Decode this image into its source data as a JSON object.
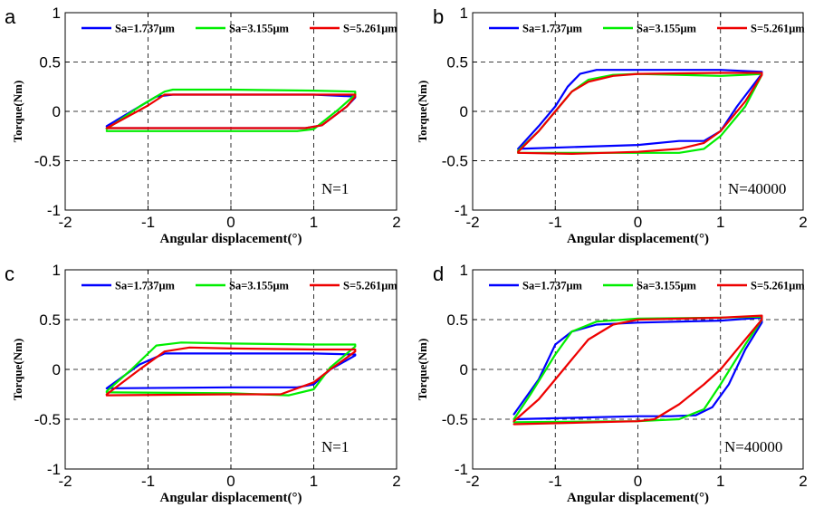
{
  "chart_data": [
    {
      "panel": "a",
      "type": "line",
      "xlabel": "Angular displacement(°)",
      "ylabel": "Torque(Nm)",
      "xlim": [
        -2,
        2
      ],
      "ylim": [
        -1,
        1
      ],
      "xticks": [
        "-2",
        "-1",
        "0",
        "1",
        "2"
      ],
      "yticks": [
        "1",
        "0.5",
        "0",
        "-0.5",
        "-1"
      ],
      "grid": true,
      "legend_position": "top",
      "annotation": "N=1",
      "series": [
        {
          "name": "Sa=1.737μm",
          "color": "#0000ff",
          "x": [
            -1.5,
            -1.2,
            -0.9,
            -0.7,
            0,
            1.0,
            1.5,
            1.5,
            1.4,
            1.1,
            0.9,
            0,
            -1.5
          ],
          "y": [
            -0.15,
            0.0,
            0.15,
            0.17,
            0.17,
            0.17,
            0.15,
            0.14,
            0.05,
            -0.14,
            -0.17,
            -0.17,
            -0.17
          ]
        },
        {
          "name": "Sa=3.155μm",
          "color": "#00ee00",
          "x": [
            -1.5,
            -1.1,
            -0.8,
            -0.7,
            0,
            1.0,
            1.5,
            1.5,
            1.3,
            1.0,
            0.8,
            0,
            -1.5
          ],
          "y": [
            -0.18,
            0.05,
            0.2,
            0.22,
            0.22,
            0.21,
            0.2,
            0.17,
            0.02,
            -0.18,
            -0.2,
            -0.2,
            -0.2
          ]
        },
        {
          "name": "S=5.261μm",
          "color": "#ee0000",
          "x": [
            -1.5,
            -1.0,
            -0.8,
            0,
            1.0,
            1.5,
            1.5,
            1.4,
            1.1,
            0.9,
            0,
            -1.5
          ],
          "y": [
            -0.17,
            0.06,
            0.17,
            0.17,
            0.17,
            0.17,
            0.15,
            0.05,
            -0.14,
            -0.17,
            -0.17,
            -0.17
          ]
        }
      ]
    },
    {
      "panel": "b",
      "type": "line",
      "xlabel": "Angular displacement(°)",
      "ylabel": "Torque(Nm)",
      "xlim": [
        -2,
        2
      ],
      "ylim": [
        -1,
        1
      ],
      "xticks": [
        "-2",
        "-1",
        "0",
        "1",
        "2"
      ],
      "yticks": [
        "1",
        "0.5",
        "0",
        "-0.5",
        "-1"
      ],
      "grid": true,
      "legend_position": "top",
      "annotation": "N=40000",
      "series": [
        {
          "name": "Sa=1.737μm",
          "color": "#0000ff",
          "x": [
            -1.45,
            -1.2,
            -1.0,
            -0.85,
            -0.7,
            -0.5,
            0,
            1.0,
            1.5,
            1.5,
            1.2,
            1.0,
            0.8,
            0.5,
            0,
            -1.45
          ],
          "y": [
            -0.38,
            -0.15,
            0.05,
            0.25,
            0.38,
            0.42,
            0.42,
            0.42,
            0.4,
            0.38,
            0.05,
            -0.2,
            -0.3,
            -0.3,
            -0.34,
            -0.38
          ]
        },
        {
          "name": "Sa=3.155μm",
          "color": "#00ee00",
          "x": [
            -1.45,
            -1.2,
            -1.0,
            -0.8,
            -0.6,
            -0.3,
            0,
            1.0,
            1.3,
            1.5,
            1.5,
            1.3,
            1.0,
            0.8,
            0.5,
            0,
            -1.45
          ],
          "y": [
            -0.4,
            -0.2,
            0.0,
            0.2,
            0.32,
            0.37,
            0.38,
            0.36,
            0.37,
            0.38,
            0.37,
            0.05,
            -0.25,
            -0.38,
            -0.42,
            -0.42,
            -0.42
          ]
        },
        {
          "name": "S=5.261μm",
          "color": "#ee0000",
          "x": [
            -1.45,
            -1.2,
            -1.0,
            -0.8,
            -0.6,
            -0.3,
            0,
            1.0,
            1.5,
            1.5,
            1.3,
            1.0,
            0.8,
            0.5,
            0,
            -0.8,
            -1.45
          ],
          "y": [
            -0.41,
            -0.2,
            0.0,
            0.2,
            0.3,
            0.36,
            0.38,
            0.39,
            0.39,
            0.37,
            0.1,
            -0.2,
            -0.32,
            -0.38,
            -0.41,
            -0.43,
            -0.42
          ]
        }
      ]
    },
    {
      "panel": "c",
      "type": "line",
      "xlabel": "Angular displacement(°)",
      "ylabel": "Torque(Nm)",
      "xlim": [
        -2,
        2
      ],
      "ylim": [
        -1,
        1
      ],
      "xticks": [
        "-2",
        "-1",
        "0",
        "1",
        "2"
      ],
      "yticks": [
        "1",
        "0.5",
        "0",
        "-0.5",
        "-1"
      ],
      "grid": true,
      "legend_position": "top",
      "annotation": "N=1",
      "series": [
        {
          "name": "Sa=1.737μm",
          "color": "#0000ff",
          "x": [
            -1.5,
            -1.1,
            -0.8,
            0,
            1.0,
            1.5,
            1.5,
            1.2,
            1.0,
            0.8,
            0,
            -1.5
          ],
          "y": [
            -0.19,
            0.05,
            0.16,
            0.16,
            0.16,
            0.15,
            0.14,
            0.0,
            -0.15,
            -0.18,
            -0.18,
            -0.19
          ]
        },
        {
          "name": "Sa=3.155μm",
          "color": "#00ee00",
          "x": [
            -1.5,
            -1.2,
            -0.9,
            -0.6,
            0,
            1.0,
            1.5,
            1.5,
            1.2,
            1.0,
            0.7,
            0,
            -1.5
          ],
          "y": [
            -0.22,
            0.0,
            0.24,
            0.27,
            0.26,
            0.25,
            0.25,
            0.23,
            0.02,
            -0.2,
            -0.26,
            -0.24,
            -0.23
          ]
        },
        {
          "name": "S=5.261μm",
          "color": "#ee0000",
          "x": [
            -1.5,
            -1.1,
            -0.8,
            -0.5,
            0,
            1.0,
            1.5,
            1.5,
            1.2,
            1.0,
            0.6,
            0,
            -1.5
          ],
          "y": [
            -0.25,
            0.0,
            0.18,
            0.22,
            0.21,
            0.2,
            0.2,
            0.18,
            0.0,
            -0.13,
            -0.25,
            -0.25,
            -0.26
          ]
        }
      ]
    },
    {
      "panel": "d",
      "type": "line",
      "xlabel": "Angular displacement(°)",
      "ylabel": "Torque(Nm)",
      "xlim": [
        -2,
        2
      ],
      "ylim": [
        -1,
        1
      ],
      "xticks": [
        "-2",
        "-1",
        "0",
        "1",
        "2"
      ],
      "yticks": [
        "1",
        "0.5",
        "0",
        "-0.5",
        "-1"
      ],
      "grid": true,
      "legend_position": "top",
      "annotation": "N=40000",
      "series": [
        {
          "name": "Sa=1.737μm",
          "color": "#0000ff",
          "x": [
            -1.5,
            -1.2,
            -1.0,
            -0.8,
            -0.5,
            0,
            1.0,
            1.5,
            1.5,
            1.3,
            1.1,
            0.9,
            0.7,
            0.4,
            0,
            -1.5
          ],
          "y": [
            -0.45,
            -0.1,
            0.25,
            0.38,
            0.45,
            0.47,
            0.49,
            0.52,
            0.47,
            0.2,
            -0.15,
            -0.38,
            -0.46,
            -0.47,
            -0.47,
            -0.5
          ]
        },
        {
          "name": "Sa=3.155μm",
          "color": "#00ee00",
          "x": [
            -1.5,
            -1.3,
            -1.0,
            -0.8,
            -0.5,
            0,
            1.0,
            1.5,
            1.5,
            1.3,
            1.0,
            0.8,
            0.5,
            0,
            -1.5
          ],
          "y": [
            -0.5,
            -0.25,
            0.15,
            0.38,
            0.48,
            0.51,
            0.52,
            0.53,
            0.5,
            0.25,
            -0.15,
            -0.4,
            -0.5,
            -0.52,
            -0.53
          ]
        },
        {
          "name": "S=5.261μm",
          "color": "#ee0000",
          "x": [
            -1.5,
            -1.2,
            -1.0,
            -0.8,
            -0.6,
            -0.3,
            0,
            1.0,
            1.5,
            1.5,
            1.3,
            1.0,
            0.8,
            0.5,
            0.2,
            0,
            -1.5
          ],
          "y": [
            -0.52,
            -0.3,
            -0.1,
            0.1,
            0.3,
            0.45,
            0.5,
            0.52,
            0.54,
            0.5,
            0.3,
            0.0,
            -0.15,
            -0.35,
            -0.5,
            -0.52,
            -0.55
          ]
        }
      ]
    }
  ]
}
